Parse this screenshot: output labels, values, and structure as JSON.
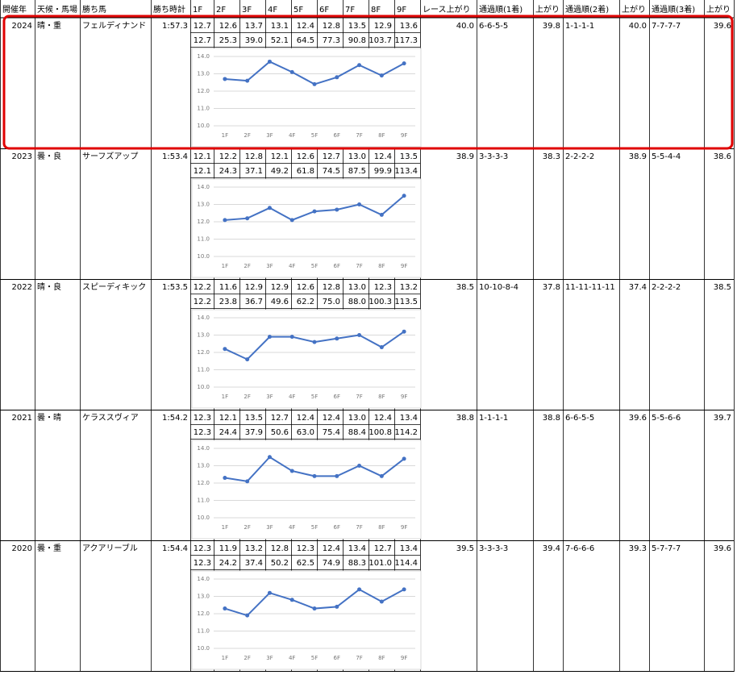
{
  "header": [
    "開催年",
    "天候・馬場",
    "勝ち馬",
    "勝ち時計",
    "1F",
    "2F",
    "3F",
    "4F",
    "5F",
    "6F",
    "7F",
    "8F",
    "9F",
    "レース上がり",
    "通過順(1着)",
    "上がり",
    "通過順(2着)",
    "上がり",
    "通過順(3着)",
    "上がり"
  ],
  "chart_axis": {
    "ylim": [
      10,
      14
    ],
    "yticks": [
      {
        "value": 10,
        "label": "10.0"
      },
      {
        "value": 11,
        "label": "11.0"
      },
      {
        "value": 12,
        "label": "12.0"
      },
      {
        "value": 13,
        "label": "13.0"
      },
      {
        "value": 14,
        "label": "14.0"
      }
    ]
  },
  "records": [
    {
      "year": "2024",
      "weather": "晴・重",
      "horse": "フェルディナンド",
      "time": "1:57.3",
      "laps": [
        "12.7",
        "12.6",
        "13.7",
        "13.1",
        "12.4",
        "12.8",
        "13.5",
        "12.9",
        "13.6"
      ],
      "cumulative": [
        "12.7",
        "25.3",
        "39.0",
        "52.1",
        "64.5",
        "77.3",
        "90.8",
        "103.7",
        "117.3"
      ],
      "race_last": "40.0",
      "first_pass": "6-6-5-5",
      "first_last": "39.8",
      "second_pass": "1-1-1-1",
      "second_last": "40.0",
      "third_pass": "7-7-7-7",
      "third_last": "39.6"
    },
    {
      "year": "2023",
      "weather": "曇・良",
      "horse": "サーフズアップ",
      "time": "1:53.4",
      "laps": [
        "12.1",
        "12.2",
        "12.8",
        "12.1",
        "12.6",
        "12.7",
        "13.0",
        "12.4",
        "13.5"
      ],
      "cumulative": [
        "12.1",
        "24.3",
        "37.1",
        "49.2",
        "61.8",
        "74.5",
        "87.5",
        "99.9",
        "113.4"
      ],
      "race_last": "38.9",
      "first_pass": "3-3-3-3",
      "first_last": "38.3",
      "second_pass": "2-2-2-2",
      "second_last": "38.9",
      "third_pass": "5-5-4-4",
      "third_last": "38.6"
    },
    {
      "year": "2022",
      "weather": "晴・良",
      "horse": "スピーディキック",
      "time": "1:53.5",
      "laps": [
        "12.2",
        "11.6",
        "12.9",
        "12.9",
        "12.6",
        "12.8",
        "13.0",
        "12.3",
        "13.2"
      ],
      "cumulative": [
        "12.2",
        "23.8",
        "36.7",
        "49.6",
        "62.2",
        "75.0",
        "88.0",
        "100.3",
        "113.5"
      ],
      "race_last": "38.5",
      "first_pass": "10-10-8-4",
      "first_last": "37.8",
      "second_pass": "11-11-11-11",
      "second_last": "37.4",
      "third_pass": "2-2-2-2",
      "third_last": "38.5"
    },
    {
      "year": "2021",
      "weather": "曇・晴",
      "horse": "ケラススヴィア",
      "time": "1:54.2",
      "laps": [
        "12.3",
        "12.1",
        "13.5",
        "12.7",
        "12.4",
        "12.4",
        "13.0",
        "12.4",
        "13.4"
      ],
      "cumulative": [
        "12.3",
        "24.4",
        "37.9",
        "50.6",
        "63.0",
        "75.4",
        "88.4",
        "100.8",
        "114.2"
      ],
      "race_last": "38.8",
      "first_pass": "1-1-1-1",
      "first_last": "38.8",
      "second_pass": "6-6-5-5",
      "second_last": "39.6",
      "third_pass": "5-5-6-6",
      "third_last": "39.7"
    },
    {
      "year": "2020",
      "weather": "曇・重",
      "horse": "アクアリーブル",
      "time": "1:54.4",
      "laps": [
        "12.3",
        "11.9",
        "13.2",
        "12.8",
        "12.3",
        "12.4",
        "13.4",
        "12.7",
        "13.4"
      ],
      "cumulative": [
        "12.3",
        "24.2",
        "37.4",
        "50.2",
        "62.5",
        "74.9",
        "88.3",
        "101.0",
        "114.4"
      ],
      "race_last": "39.5",
      "first_pass": "3-3-3-3",
      "first_last": "39.4",
      "second_pass": "7-6-6-6",
      "second_last": "39.3",
      "third_pass": "5-7-7-7",
      "third_last": "39.6"
    }
  ]
}
